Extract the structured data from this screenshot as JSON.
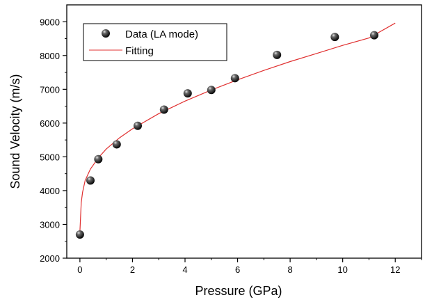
{
  "chart_data": {
    "type": "scatter",
    "xlabel": "Pressure (GPa)",
    "ylabel": "Sound Velocity (m/s)",
    "xlim": [
      -0.5,
      13
    ],
    "ylim": [
      2000,
      9500
    ],
    "xticks": [
      0,
      2,
      4,
      6,
      8,
      10,
      12
    ],
    "yticks": [
      2000,
      3000,
      4000,
      5000,
      6000,
      7000,
      8000,
      9000
    ],
    "xtick_labels": [
      "0",
      "2",
      "4",
      "6",
      "8",
      "10",
      "12"
    ],
    "ytick_labels": [
      "2000",
      "3000",
      "4000",
      "5000",
      "6000",
      "7000",
      "8000",
      "9000"
    ],
    "legend_position": "top-left",
    "grid": false,
    "series": [
      {
        "name": "Data (LA mode)",
        "kind": "scatter",
        "color": "#111111",
        "points": [
          {
            "x": 0.0,
            "y": 2700
          },
          {
            "x": 0.4,
            "y": 4300
          },
          {
            "x": 0.7,
            "y": 4930
          },
          {
            "x": 1.4,
            "y": 5370
          },
          {
            "x": 2.2,
            "y": 5920
          },
          {
            "x": 3.2,
            "y": 6400
          },
          {
            "x": 4.1,
            "y": 6880
          },
          {
            "x": 5.0,
            "y": 6980
          },
          {
            "x": 5.9,
            "y": 7330
          },
          {
            "x": 7.5,
            "y": 8020
          },
          {
            "x": 9.7,
            "y": 8550
          },
          {
            "x": 11.2,
            "y": 8600
          }
        ]
      },
      {
        "name": "Fitting",
        "kind": "line",
        "color": "#e03030",
        "points": [
          {
            "x": 0.0,
            "y": 2800
          },
          {
            "x": 0.05,
            "y": 3650
          },
          {
            "x": 0.1,
            "y": 3950
          },
          {
            "x": 0.2,
            "y": 4300
          },
          {
            "x": 0.4,
            "y": 4640
          },
          {
            "x": 0.7,
            "y": 4970
          },
          {
            "x": 1.0,
            "y": 5230
          },
          {
            "x": 1.5,
            "y": 5560
          },
          {
            "x": 2.0,
            "y": 5830
          },
          {
            "x": 3.0,
            "y": 6280
          },
          {
            "x": 4.0,
            "y": 6650
          },
          {
            "x": 5.0,
            "y": 6980
          },
          {
            "x": 6.0,
            "y": 7280
          },
          {
            "x": 7.0,
            "y": 7560
          },
          {
            "x": 8.0,
            "y": 7820
          },
          {
            "x": 9.0,
            "y": 8060
          },
          {
            "x": 10.0,
            "y": 8300
          },
          {
            "x": 11.0,
            "y": 8520
          },
          {
            "x": 12.0,
            "y": 8960
          }
        ]
      }
    ]
  }
}
